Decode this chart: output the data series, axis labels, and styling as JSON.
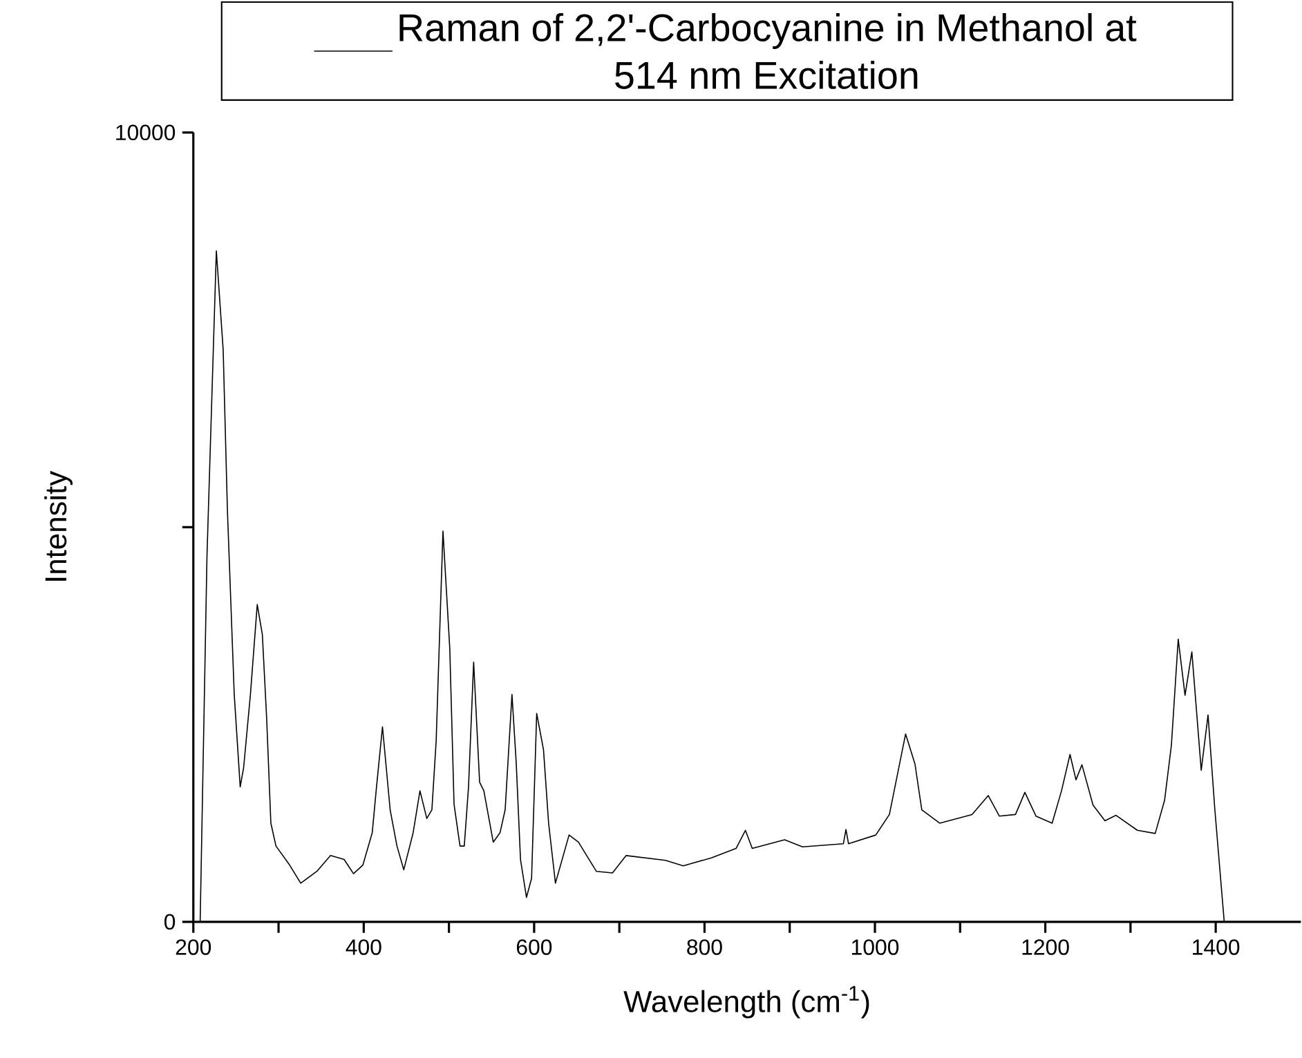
{
  "chart_data": {
    "type": "line",
    "xlabel": "Wavelength (cm$^{-1}$)",
    "ylabel": "Intensity",
    "x": [
      208,
      216,
      227,
      235,
      240,
      243,
      248,
      255,
      259,
      267,
      275,
      281,
      286,
      291,
      297,
      313,
      326,
      345,
      361,
      377,
      388,
      399,
      410,
      415,
      422,
      431,
      439,
      447,
      458,
      466,
      474,
      480,
      485,
      493,
      501,
      506,
      513,
      518,
      523,
      529,
      536,
      541,
      552,
      560,
      566,
      574,
      579,
      584,
      591,
      597,
      603,
      611,
      617,
      625,
      641,
      652,
      673,
      692,
      708,
      754,
      775,
      808,
      837,
      848,
      856,
      894,
      915,
      963,
      966,
      969,
      1001,
      1017,
      1036,
      1047,
      1055,
      1076,
      1114,
      1133,
      1146,
      1165,
      1176,
      1189,
      1208,
      1219,
      1229,
      1236,
      1243,
      1256,
      1270,
      1283,
      1308,
      1329,
      1340,
      1348,
      1356,
      1364,
      1372,
      1383,
      1391,
      1399,
      1410
    ],
    "series": [
      {
        "name": "Raman of 2,2'-Carbocyanine in Methanol at 514 nm Excitation",
        "color": "#000000",
        "values": [
          0,
          4630,
          8500,
          7250,
          5210,
          4340,
          2880,
          1710,
          1950,
          2880,
          4020,
          3640,
          2590,
          1250,
          960,
          720,
          490,
          640,
          840,
          790,
          610,
          720,
          1130,
          1710,
          2470,
          1420,
          960,
          660,
          1130,
          1660,
          1310,
          1420,
          2290,
          4950,
          3460,
          1490,
          960,
          960,
          1710,
          3290,
          1770,
          1660,
          1010,
          1130,
          1420,
          2880,
          2010,
          790,
          310,
          550,
          2640,
          2180,
          1250,
          490,
          1100,
          1010,
          640,
          620,
          840,
          780,
          710,
          810,
          930,
          1160,
          930,
          1040,
          950,
          990,
          1170,
          990,
          1100,
          1360,
          2380,
          2000,
          1420,
          1250,
          1360,
          1600,
          1340,
          1360,
          1640,
          1340,
          1250,
          1660,
          2120,
          1800,
          1990,
          1480,
          1280,
          1350,
          1160,
          1120,
          1540,
          2240,
          3580,
          2870,
          3420,
          1920,
          2620,
          1420,
          0
        ]
      }
    ],
    "xlim": [
      200,
      1500
    ],
    "ylim": [
      0,
      10000
    ],
    "xticks": [
      200,
      {
        "value": 300,
        "label": null
      },
      400,
      {
        "value": 500,
        "label": null
      },
      600,
      {
        "value": 700,
        "label": null
      },
      800,
      {
        "value": 900,
        "label": null
      },
      1000,
      {
        "value": 1100,
        "label": null
      },
      1200,
      {
        "value": 1300,
        "label": null
      },
      1400
    ],
    "yticks": [
      0,
      {
        "value": 5000,
        "label": null
      },
      10000
    ],
    "legend": "top"
  }
}
